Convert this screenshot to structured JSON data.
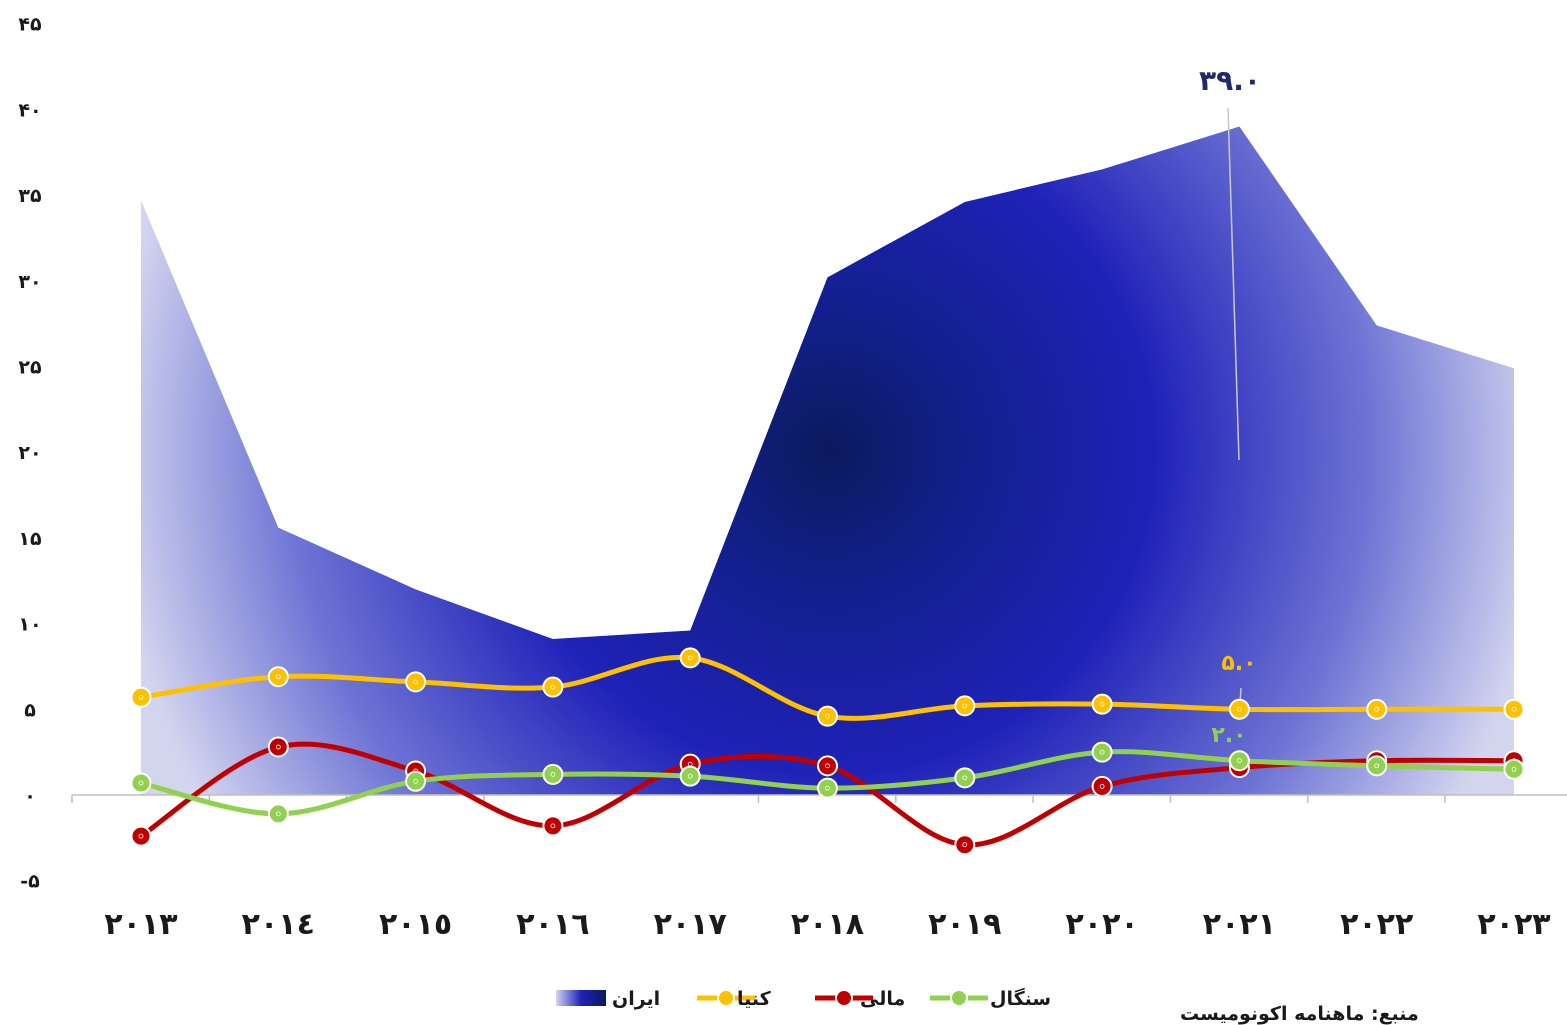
{
  "chart_data": {
    "type": "line",
    "title": "",
    "xlabel": "",
    "ylabel": "",
    "categories": [
      "2013",
      "2014",
      "2015",
      "2016",
      "2017",
      "2018",
      "2019",
      "2020",
      "2021",
      "2022",
      "2023"
    ],
    "x_tick_labels": [
      "۲۰۱۳",
      "۲۰۱٤",
      "۲۰۱٥",
      "۲۰۱٦",
      "۲۰۱۷",
      "۲۰۱۸",
      "۲۰۱۹",
      "۲۰۲۰",
      "۲۰۲۱",
      "۲۰۲۲",
      "۲۰۲۳"
    ],
    "ylim": [
      -5,
      45
    ],
    "y_ticks": [
      -5,
      0,
      5,
      10,
      15,
      20,
      25,
      30,
      35,
      40,
      45
    ],
    "y_tick_labels": [
      "-۵",
      "۰",
      "۵",
      "۱۰",
      "۱۵",
      "۲۰",
      "۲۵",
      "۳۰",
      "۳۵",
      "۴۰",
      "۴۵"
    ],
    "grid": false,
    "legend_position": "bottom",
    "series": [
      {
        "name": "ایران",
        "kind": "area",
        "color": "#1f22b8",
        "values": [
          34.7,
          15.6,
          12.0,
          9.1,
          9.6,
          30.2,
          34.6,
          36.5,
          39.0,
          27.4,
          24.9
        ]
      },
      {
        "name": "کنیا",
        "kind": "line",
        "color": "#ffc000",
        "values": [
          5.7,
          6.9,
          6.6,
          6.3,
          8.0,
          4.6,
          5.2,
          5.3,
          5.0,
          5.0,
          5.0
        ]
      },
      {
        "name": "مالی",
        "kind": "line",
        "color": "#c00000",
        "values": [
          -2.4,
          2.8,
          1.4,
          -1.8,
          1.8,
          1.7,
          -2.9,
          0.5,
          1.6,
          2.0,
          2.0
        ]
      },
      {
        "name": "سنگال",
        "kind": "line",
        "color": "#92d050",
        "values": [
          0.7,
          -1.1,
          0.8,
          1.2,
          1.1,
          0.4,
          1.0,
          2.5,
          2.0,
          1.7,
          1.5
        ]
      }
    ],
    "annotations": [
      {
        "series": "ایران",
        "category": "2021",
        "text": "۳۹.۰",
        "color": "#1f2a6b"
      },
      {
        "series": "کنیا",
        "category": "2021",
        "text": "۵.۰",
        "color": "#ffc000"
      },
      {
        "series": "سنگال",
        "category": "2021",
        "text": "۲.۰",
        "color": "#92d050"
      }
    ]
  },
  "footnote": "منبع: ماهنامه اکونومیست"
}
